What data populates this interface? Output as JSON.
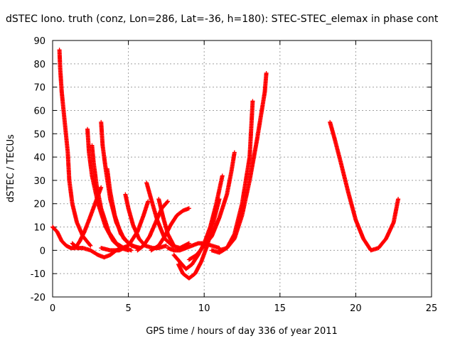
{
  "chart_data": {
    "type": "scatter",
    "marker": "+",
    "title": "dSTEC Iono. truth (conz, Lon=286, Lat=-36, h=180): STEC-STEC_elemax in phase cont",
    "xlabel": "GPS time / hours of day 336 of year 2011",
    "ylabel": "dSTEC  / TECUs",
    "xlim": [
      0,
      25
    ],
    "ylim": [
      -20,
      90
    ],
    "xticks": [
      "0",
      "5",
      "10",
      "15",
      "20",
      "25"
    ],
    "yticks": [
      "-20",
      "-10",
      "0",
      "10",
      "20",
      "30",
      "40",
      "50",
      "60",
      "70",
      "80",
      "90"
    ],
    "grid": true,
    "color": "#ff0000",
    "series": [
      {
        "x": [
          0.45,
          0.5,
          0.6,
          0.8,
          1.0,
          1.1,
          1.3,
          1.6,
          2.0,
          2.5
        ],
        "y": [
          86,
          78,
          68,
          55,
          42,
          30,
          20,
          12,
          6,
          2
        ]
      },
      {
        "x": [
          0.0,
          0.3,
          0.6,
          0.9,
          1.2,
          1.5,
          1.8,
          2.1,
          2.4,
          2.8,
          3.2
        ],
        "y": [
          10,
          8,
          4,
          2,
          1,
          1,
          4,
          8,
          13,
          20,
          27
        ]
      },
      {
        "x": [
          1.3,
          1.6,
          2.0,
          2.5,
          3.0,
          3.4,
          3.8,
          4.2,
          4.6,
          5.0
        ],
        "y": [
          3,
          1,
          1,
          0,
          -2,
          -3,
          -2,
          0,
          1,
          2
        ]
      },
      {
        "x": [
          2.3,
          2.4,
          2.6,
          3.0,
          3.5,
          4.0,
          4.5,
          5.0
        ],
        "y": [
          52,
          42,
          32,
          20,
          10,
          4,
          1,
          0
        ]
      },
      {
        "x": [
          2.6,
          2.7,
          2.9,
          3.2,
          3.7,
          4.2,
          4.7,
          5.2
        ],
        "y": [
          45,
          38,
          28,
          18,
          8,
          3,
          1,
          0
        ]
      },
      {
        "x": [
          3.2,
          3.3,
          3.5,
          3.8,
          4.2,
          4.7,
          5.2,
          5.8
        ],
        "y": [
          55,
          45,
          35,
          22,
          12,
          5,
          2,
          1
        ]
      },
      {
        "x": [
          3.6,
          3.8,
          4.1,
          4.5,
          5.0,
          5.6
        ],
        "y": [
          35,
          25,
          15,
          7,
          3,
          1
        ]
      },
      {
        "x": [
          4.8,
          5.0,
          5.3,
          5.7,
          6.1,
          6.6,
          7.0,
          7.5
        ],
        "y": [
          24,
          18,
          11,
          5,
          2,
          1,
          1,
          2
        ]
      },
      {
        "x": [
          3.2,
          3.8,
          4.4,
          5.0,
          5.6,
          6.0,
          6.3
        ],
        "y": [
          1,
          0,
          0,
          2,
          8,
          15,
          21
        ]
      },
      {
        "x": [
          5.6,
          6.0,
          6.4,
          6.8,
          7.2,
          7.6
        ],
        "y": [
          0,
          2,
          6,
          12,
          18,
          21
        ]
      },
      {
        "x": [
          6.2,
          6.5,
          6.9,
          7.4,
          7.9,
          8.4,
          9.0
        ],
        "y": [
          29,
          22,
          13,
          5,
          2,
          1,
          3
        ]
      },
      {
        "x": [
          6.5,
          7.0,
          7.4,
          7.8,
          8.2,
          8.6,
          9.0
        ],
        "y": [
          0,
          2,
          6,
          11,
          15,
          17,
          18
        ]
      },
      {
        "x": [
          7.0,
          7.3,
          7.6,
          8.0
        ],
        "y": [
          22,
          14,
          7,
          2
        ]
      },
      {
        "x": [
          7.6,
          8.0,
          8.4,
          8.8,
          9.2,
          9.6,
          10.0,
          10.5,
          11.0
        ],
        "y": [
          1,
          0,
          0,
          1,
          2,
          3,
          3,
          2,
          1
        ]
      },
      {
        "x": [
          8.0,
          8.4,
          8.8,
          9.2,
          9.6,
          10.0,
          10.4,
          10.8,
          11.2
        ],
        "y": [
          -2,
          -5,
          -8,
          -6,
          -2,
          3,
          10,
          20,
          32
        ]
      },
      {
        "x": [
          8.3,
          8.6,
          9.0,
          9.4,
          9.8,
          10.2,
          10.6,
          11.0
        ],
        "y": [
          -6,
          -10,
          -12,
          -10,
          -5,
          2,
          12,
          22
        ]
      },
      {
        "x": [
          9.0,
          9.5,
          10.0,
          10.5,
          11.0,
          11.5,
          11.8,
          12.0
        ],
        "y": [
          -4,
          -2,
          2,
          6,
          14,
          24,
          34,
          42
        ]
      },
      {
        "x": [
          10.5,
          11.0,
          11.5,
          12.0,
          12.5,
          13.0,
          13.2
        ],
        "y": [
          0,
          -1,
          1,
          7,
          20,
          40,
          64
        ]
      },
      {
        "x": [
          11.0,
          11.5,
          12.0,
          12.5,
          13.0,
          13.5,
          14.0,
          14.1
        ],
        "y": [
          0,
          1,
          5,
          15,
          30,
          48,
          68,
          76
        ]
      },
      {
        "x": [
          18.3,
          18.6,
          19.0,
          19.5,
          20.0,
          20.5,
          21.0,
          21.5,
          22.0,
          22.5,
          22.8
        ],
        "y": [
          55,
          48,
          38,
          25,
          13,
          5,
          0,
          1,
          5,
          12,
          22
        ]
      }
    ]
  }
}
